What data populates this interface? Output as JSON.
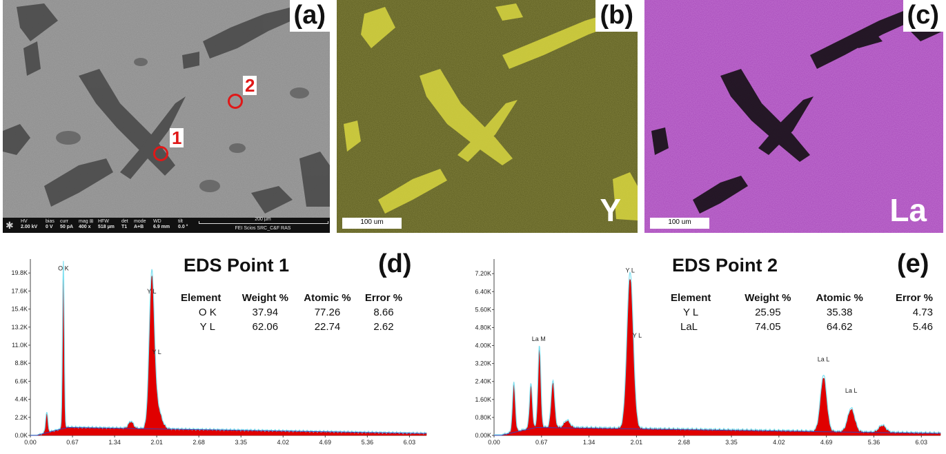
{
  "panels": {
    "a": {
      "label": "(a)",
      "spot1": "1",
      "spot2": "2"
    },
    "b": {
      "label": "(b)",
      "element": "Y",
      "scalebar": "100 um",
      "color": "#6b6b1e",
      "rich_color": "#d8d640"
    },
    "c": {
      "label": "(c)",
      "element": "La",
      "scalebar": "100 um",
      "color": "#c060d0",
      "poor_color": "#111111"
    }
  },
  "sem_footer": {
    "cols": [
      {
        "h": "HV",
        "v": "2.00 kV"
      },
      {
        "h": "bias",
        "v": "0 V"
      },
      {
        "h": "curr",
        "v": "50 pA"
      },
      {
        "h": "mag ⊞",
        "v": "400 x"
      },
      {
        "h": "HFW",
        "v": "518 µm"
      },
      {
        "h": "det",
        "v": "T1"
      },
      {
        "h": "mode",
        "v": "A+B"
      },
      {
        "h": "WD",
        "v": "6.9 mm"
      },
      {
        "h": "tilt",
        "v": "0.0 °"
      }
    ],
    "scale": "200 µm",
    "instrument": "FEI Scios SRC_C&F RAS"
  },
  "chart_data": [
    {
      "type": "area",
      "panel": "(d)",
      "title": "EDS Point 1",
      "x_ticks": [
        "0.00",
        "0.67",
        "1.34",
        "2.01",
        "2.68",
        "3.35",
        "4.02",
        "4.69",
        "5.36",
        "6.03"
      ],
      "y_ticks": [
        "0.0K",
        "2.2K",
        "4.4K",
        "6.6K",
        "8.8K",
        "11.0K",
        "13.2K",
        "15.4K",
        "17.6K",
        "19.8K"
      ],
      "xlim": [
        0,
        6.3
      ],
      "ylim": [
        0,
        21500
      ],
      "peaks": [
        {
          "x": 0.26,
          "h": 2400,
          "w": 0.018
        },
        {
          "x": 0.525,
          "h": 19600,
          "w": 0.014
        },
        {
          "x": 1.6,
          "h": 800,
          "w": 0.04
        },
        {
          "x": 1.93,
          "h": 16800,
          "w": 0.04
        },
        {
          "x": 2.0,
          "h": 3000,
          "w": 0.07
        }
      ],
      "annotations": [
        {
          "text": "O K",
          "x": 0.525,
          "y": 20100
        },
        {
          "text": "Y L",
          "x": 1.93,
          "y": 17300
        },
        {
          "text": "Y L",
          "x": 2.01,
          "y": 9900
        }
      ],
      "table": {
        "headers": [
          "Element",
          "Weight %",
          "Atomic %",
          "Error %"
        ],
        "rows": [
          [
            "O K",
            "37.94",
            "77.26",
            "8.66"
          ],
          [
            "Y L",
            "62.06",
            "22.74",
            "2.62"
          ]
        ]
      },
      "colors": {
        "fill": "#e00000",
        "fit": "#80e0f0",
        "bg": "#4040b0"
      }
    },
    {
      "type": "area",
      "panel": "(e)",
      "title": "EDS Point 2",
      "x_ticks": [
        "0.00",
        "0.67",
        "1.34",
        "2.01",
        "2.68",
        "3.35",
        "4.02",
        "4.69",
        "5.36",
        "6.03"
      ],
      "y_ticks": [
        "0.00K",
        "0.80K",
        "1.60K",
        "2.40K",
        "3.20K",
        "4.00K",
        "4.80K",
        "5.60K",
        "6.40K",
        "7.20K"
      ],
      "xlim": [
        0,
        6.3
      ],
      "ylim": [
        0,
        7850
      ],
      "peaks": [
        {
          "x": 0.28,
          "h": 2100,
          "w": 0.02
        },
        {
          "x": 0.52,
          "h": 1900,
          "w": 0.02
        },
        {
          "x": 0.64,
          "h": 3500,
          "w": 0.02
        },
        {
          "x": 0.83,
          "h": 2000,
          "w": 0.025
        },
        {
          "x": 1.03,
          "h": 300,
          "w": 0.04
        },
        {
          "x": 1.92,
          "h": 6700,
          "w": 0.045
        },
        {
          "x": 4.65,
          "h": 2400,
          "w": 0.045
        },
        {
          "x": 5.04,
          "h": 1000,
          "w": 0.05
        },
        {
          "x": 5.48,
          "h": 300,
          "w": 0.05
        }
      ],
      "annotations": [
        {
          "text": "La M",
          "x": 0.63,
          "y": 4200
        },
        {
          "text": "Y L",
          "x": 1.92,
          "y": 7250
        },
        {
          "text": "Y L",
          "x": 2.02,
          "y": 4350
        },
        {
          "text": "La L",
          "x": 4.65,
          "y": 3300
        },
        {
          "text": "La L",
          "x": 5.04,
          "y": 1900
        }
      ],
      "table": {
        "headers": [
          "Element",
          "Weight %",
          "Atomic %",
          "Error %"
        ],
        "rows": [
          [
            "Y L",
            "25.95",
            "35.38",
            "4.73"
          ],
          [
            "LaL",
            "74.05",
            "64.62",
            "5.46"
          ]
        ]
      },
      "colors": {
        "fill": "#e00000",
        "fit": "#80e0f0",
        "bg": "#4040b0"
      }
    }
  ]
}
